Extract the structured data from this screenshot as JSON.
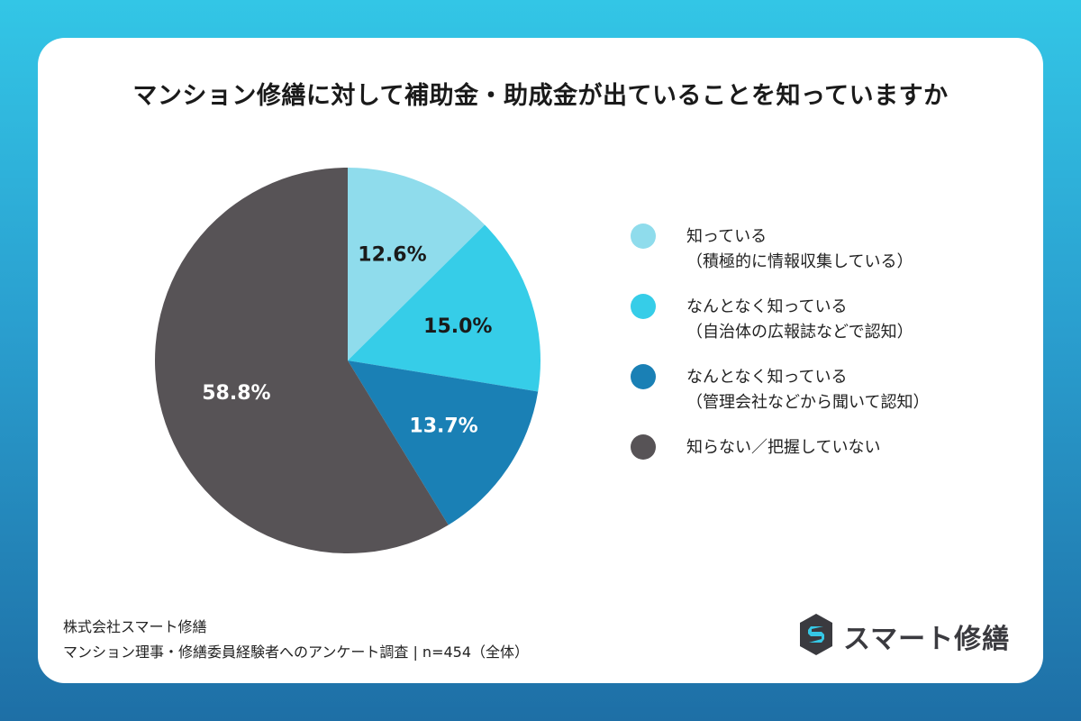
{
  "title": "マンション修繕に対して補助金・助成金が出ていることを知っていますか",
  "chart_data": {
    "type": "pie",
    "title": "マンション修繕に対して補助金・助成金が出ていることを知っていますか",
    "slices": [
      {
        "label_line1": "知っている",
        "label_line2": "（積極的に情報収集している）",
        "value": 12.6,
        "value_label": "12.6%",
        "color": "#8fdcec",
        "label_color": "#1a1a1a"
      },
      {
        "label_line1": "なんとなく知っている",
        "label_line2": "（自治体の広報誌などで認知）",
        "value": 15.0,
        "value_label": "15.0%",
        "color": "#36cde8",
        "label_color": "#1a1a1a"
      },
      {
        "label_line1": "なんとなく知っている",
        "label_line2": "（管理会社などから聞いて認知）",
        "value": 13.7,
        "value_label": "13.7%",
        "color": "#1a80b5",
        "label_color": "#ffffff"
      },
      {
        "label_line1": "知らない／把握していない",
        "label_line2": "",
        "value": 58.8,
        "value_label": "58.8%",
        "color": "#575356",
        "label_color": "#ffffff"
      }
    ],
    "start_angle": "12 o'clock",
    "direction": "clockwise",
    "legend_position": "right"
  },
  "footer": {
    "company": "株式会社スマート修繕",
    "survey": "マンション理事・修繕委員経験者へのアンケート調査 | n=454（全体）"
  },
  "logo": {
    "text": "スマート修繕",
    "icon": "s-logo-icon"
  }
}
